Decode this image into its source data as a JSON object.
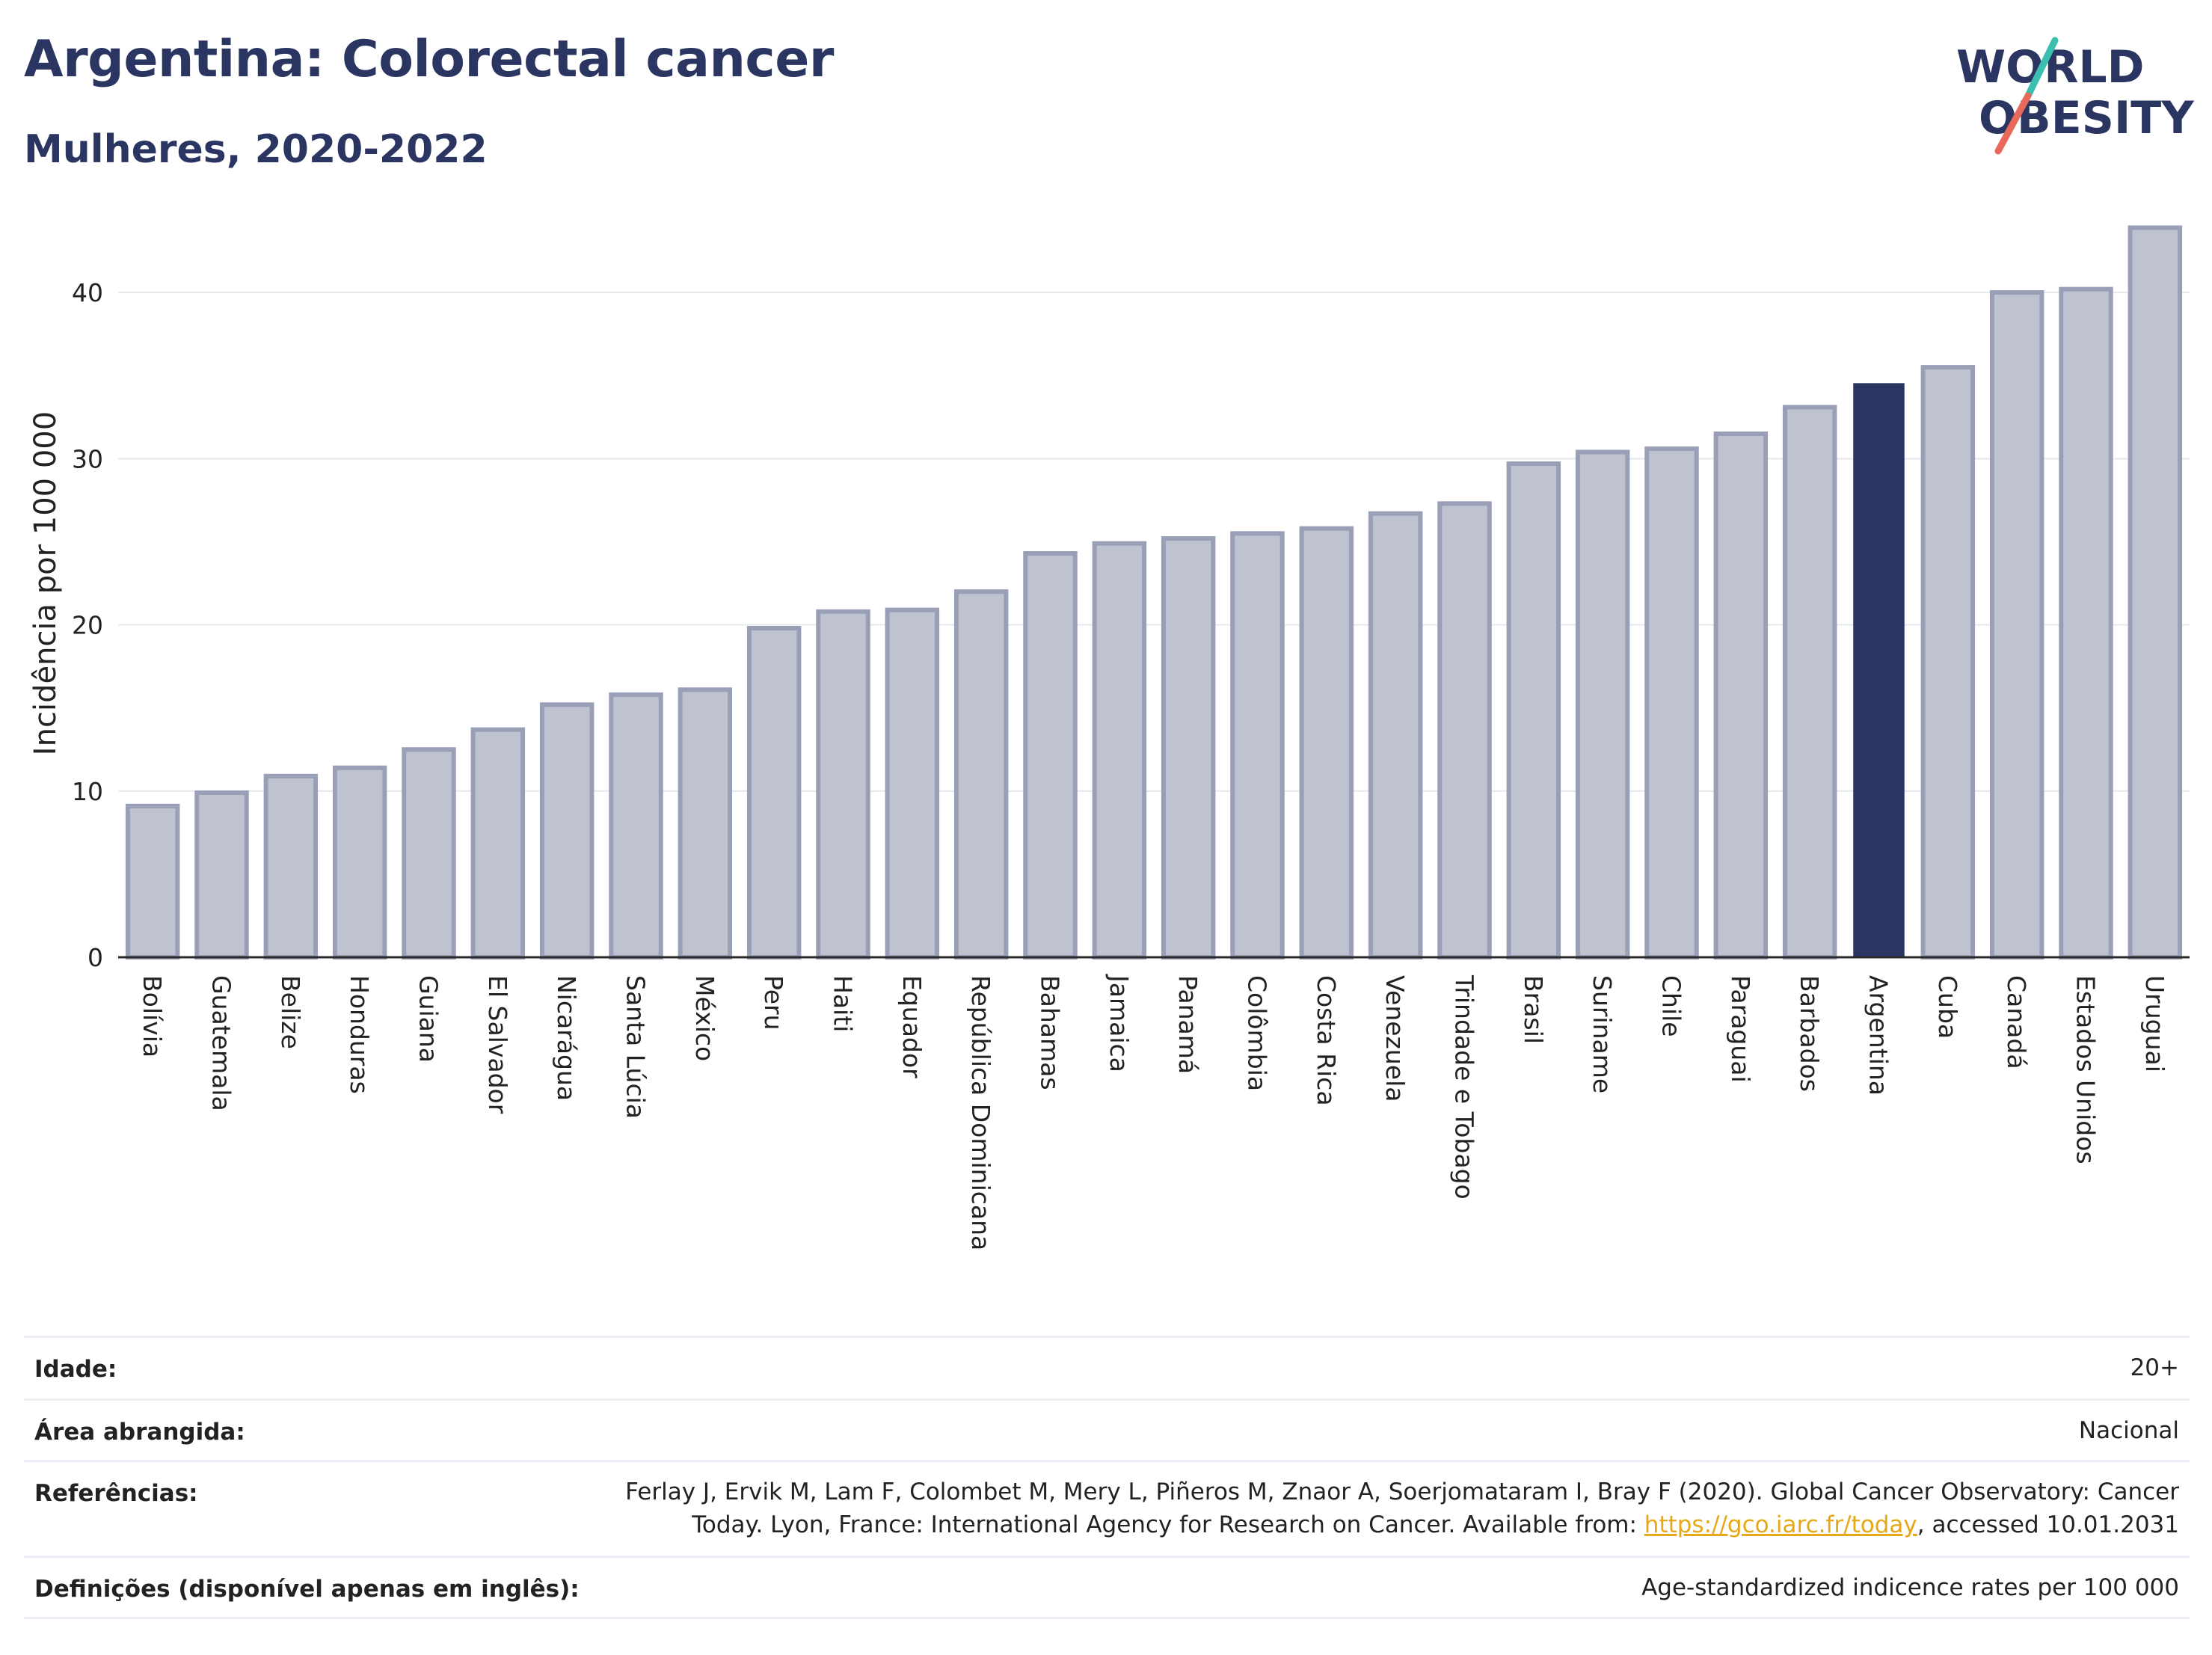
{
  "header": {
    "title": "Argentina: Colorectal cancer",
    "subtitle": "Mulheres, 2020-2022"
  },
  "logo": {
    "line1": "WORLD",
    "line2": "OBESITY",
    "accent_colors": [
      "#3bbfb0",
      "#e8685b"
    ],
    "text_color": "#2a3561"
  },
  "chart_data": {
    "type": "bar",
    "ylabel": "Incidência por 100 000",
    "xlabel": "",
    "ylim": [
      0,
      45
    ],
    "yticks": [
      0,
      10,
      20,
      30,
      40
    ],
    "grid": true,
    "highlight": "Argentina",
    "colors": {
      "default_fill": "#bfc2cf",
      "default_stroke": "#9a9fb8",
      "highlight_fill": "#2a3561"
    },
    "categories": [
      "Bolívia",
      "Guatemala",
      "Belize",
      "Honduras",
      "Guiana",
      "El Salvador",
      "Nicarágua",
      "Santa Lúcia",
      "México",
      "Peru",
      "Haiti",
      "Equador",
      "República Dominicana",
      "Bahamas",
      "Jamaica",
      "Panamá",
      "Colômbia",
      "Costa Rica",
      "Venezuela",
      "Trindade e Tobago",
      "Brasil",
      "Suriname",
      "Chile",
      "Paraguai",
      "Barbados",
      "Argentina",
      "Cuba",
      "Canadá",
      "Estados Unidos",
      "Uruguai"
    ],
    "values": [
      9.1,
      9.9,
      10.9,
      11.4,
      12.5,
      13.7,
      15.2,
      15.8,
      16.1,
      19.8,
      20.8,
      20.9,
      22.0,
      24.3,
      24.9,
      25.2,
      25.5,
      25.8,
      26.7,
      27.3,
      29.7,
      30.4,
      30.6,
      31.5,
      33.1,
      34.5,
      35.5,
      40.0,
      40.2,
      43.9
    ]
  },
  "info": {
    "age_label": "Idade:",
    "age_value": "20+",
    "area_label": "Área abrangida:",
    "area_value": "Nacional",
    "ref_label": "Referências:",
    "ref_line1": "Ferlay J, Ervik M, Lam F, Colombet M, Mery L, Piñeros M, Znaor A, Soerjomataram I, Bray F (2020). Global Cancer Observatory: Cancer",
    "ref_line2_pre": "Today. Lyon, France: International Agency for Research on Cancer. Available from: ",
    "ref_link": "https://gco.iarc.fr/today",
    "ref_line2_post": ", accessed 10.01.2031",
    "def_label": "Definições (disponível apenas em inglês):",
    "def_value": "Age-standardized indicence rates per 100 000"
  }
}
